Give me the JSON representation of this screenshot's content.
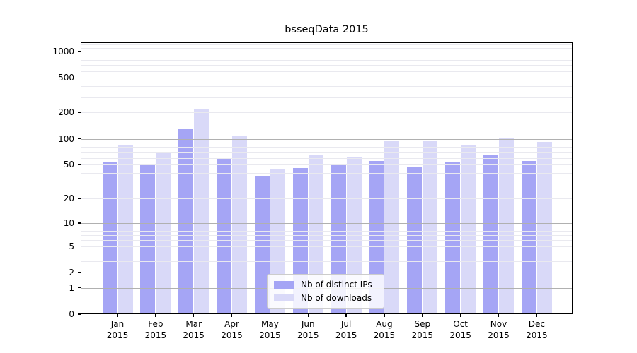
{
  "title": "bsseqData 2015",
  "chart_data": {
    "type": "bar",
    "title": "bsseqData 2015",
    "y_scale": "log1p",
    "categories": [
      "Jan",
      "Feb",
      "Mar",
      "Apr",
      "May",
      "Jun",
      "Jul",
      "Aug",
      "Sep",
      "Oct",
      "Nov",
      "Dec"
    ],
    "category_year": "2015",
    "series": [
      {
        "name": "Nb of distinct IPs",
        "color": "#a5a5f5",
        "values": [
          53,
          49,
          130,
          59,
          37,
          46,
          51,
          55,
          47,
          54,
          65,
          55
        ]
      },
      {
        "name": "Nb of downloads",
        "color": "#d9d9f8",
        "values": [
          83,
          68,
          220,
          108,
          45,
          65,
          61,
          94,
          93,
          85,
          101,
          92
        ]
      }
    ],
    "y_ticks": [
      0,
      1,
      2,
      5,
      10,
      20,
      50,
      100,
      200,
      500,
      1000
    ],
    "y_major_gridlines": [
      1,
      10,
      100,
      1000
    ],
    "y_minor_gridlines_extra": [
      1100,
      1200
    ],
    "ylim": [
      0,
      1275
    ],
    "grid": true,
    "legend_position": "lower-center"
  },
  "colors": {
    "bar_dark": "#a5a5f5",
    "bar_light": "#d9d9f8",
    "grid_major": "#b0b0b0",
    "grid_minor": "#e9e9ef",
    "spine": "#000000"
  }
}
